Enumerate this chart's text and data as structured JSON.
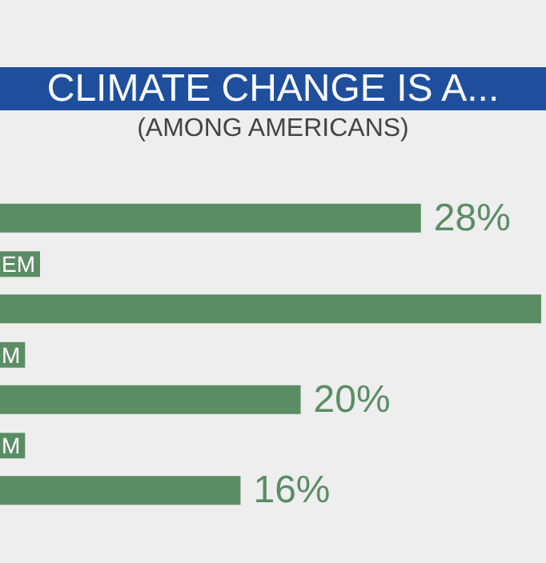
{
  "chart_data": {
    "type": "bar",
    "orientation": "horizontal",
    "title": "CLIMATE CHANGE IS A...",
    "subtitle": "(AMONG AMERICANS)",
    "categories": [
      null,
      "EM",
      "M",
      "M"
    ],
    "values": [
      28,
      36,
      20,
      16
    ],
    "value_labels": [
      "28%",
      null,
      "20%",
      "16%"
    ],
    "color": "#5b8d65"
  }
}
